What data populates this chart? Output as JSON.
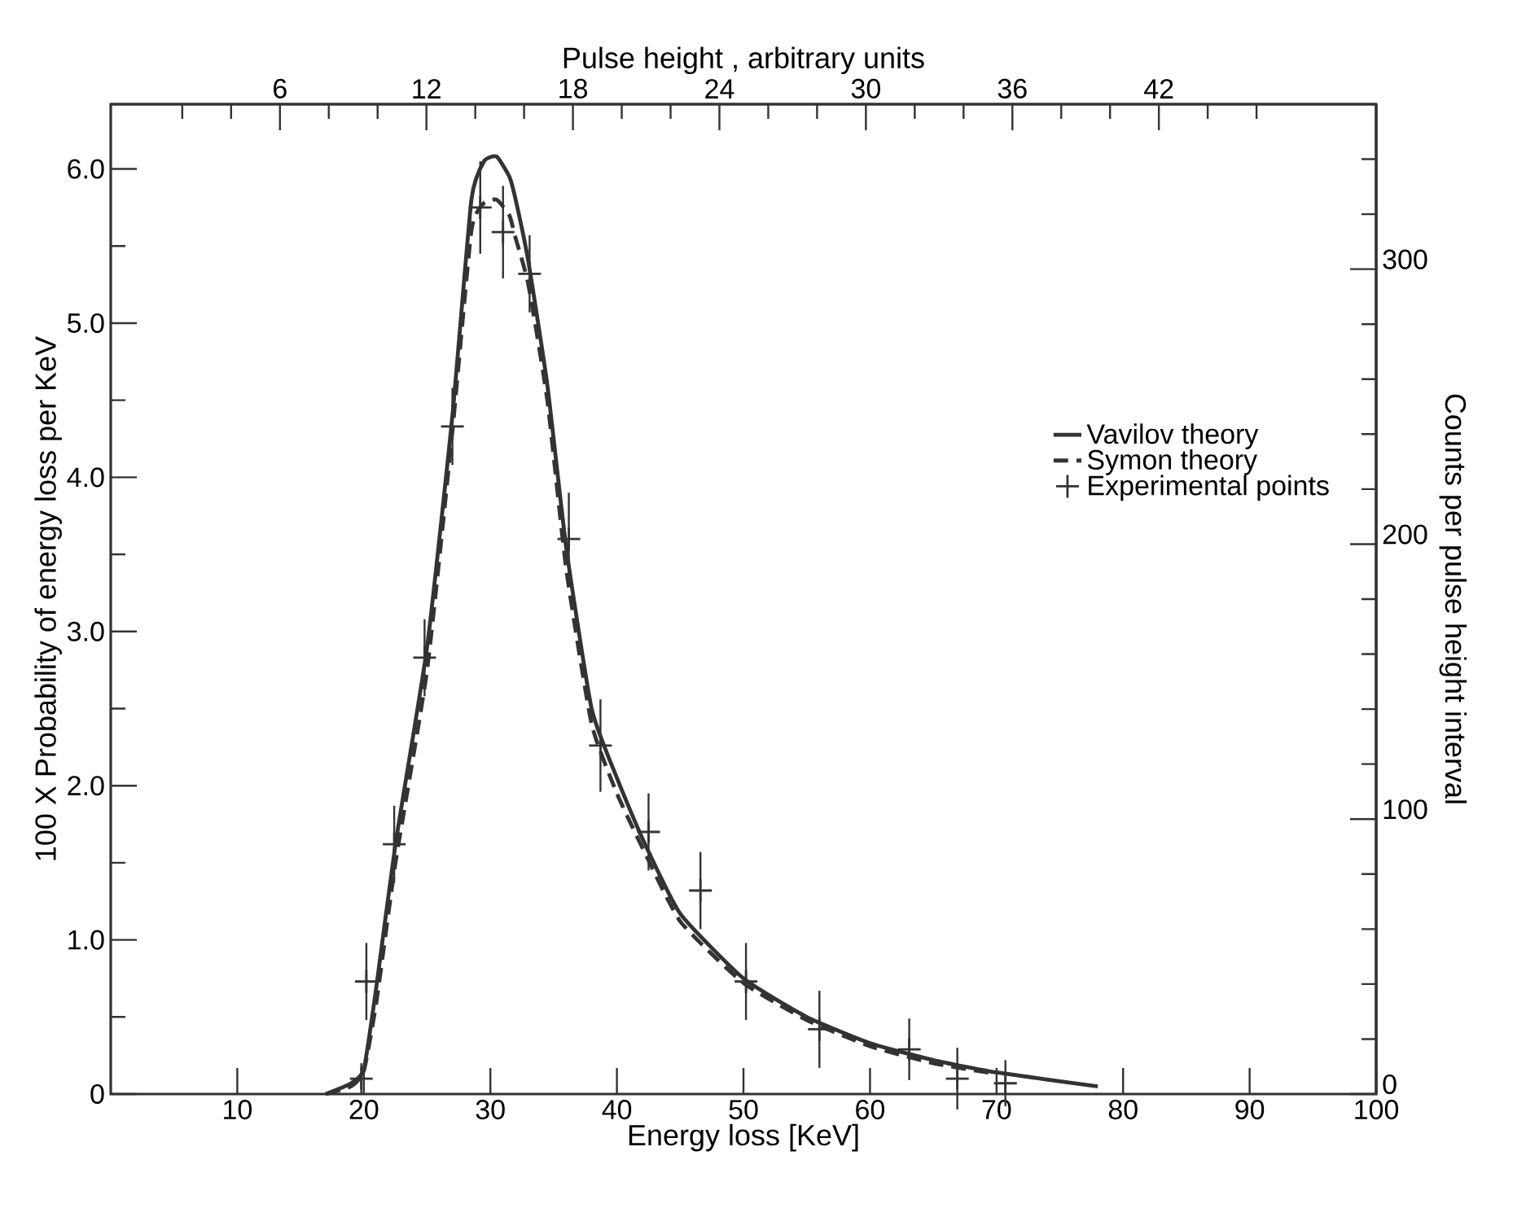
{
  "chart_data": {
    "type": "line",
    "xlabel": "Energy loss [KeV]",
    "ylabel": "100 X Probability of energy loss per KeV",
    "y2label": "Counts per pulse height interval",
    "x2label": "Pulse height , arbitrary units",
    "xlim": [
      0,
      100
    ],
    "ylim": [
      0,
      6.42
    ],
    "y2lim": [
      0,
      360
    ],
    "x2lim": [
      -0.93,
      50.9
    ],
    "xticks": [
      10,
      20,
      30,
      40,
      50,
      60,
      70,
      80,
      90,
      100
    ],
    "yticks": [
      0,
      {
        "value": 0.5,
        "label": null
      },
      {
        "value": 1,
        "label": "1.0"
      },
      {
        "value": 1.5,
        "label": null
      },
      {
        "value": 2,
        "label": "2.0"
      },
      {
        "value": 2.5,
        "label": null
      },
      {
        "value": 3,
        "label": "3.0"
      },
      {
        "value": 3.5,
        "label": null
      },
      {
        "value": 4,
        "label": "4.0"
      },
      {
        "value": 4.5,
        "label": null
      },
      {
        "value": 5,
        "label": "5.0"
      },
      {
        "value": 5.5,
        "label": null
      },
      {
        "value": 6,
        "label": "6.0"
      }
    ],
    "y2ticks": [
      0,
      {
        "value": 20,
        "label": null
      },
      {
        "value": 40,
        "label": null
      },
      {
        "value": 60,
        "label": null
      },
      {
        "value": 80,
        "label": null
      },
      100,
      {
        "value": 120,
        "label": null
      },
      {
        "value": 140,
        "label": null
      },
      {
        "value": 160,
        "label": null
      },
      {
        "value": 180,
        "label": null
      },
      200,
      {
        "value": 220,
        "label": null
      },
      {
        "value": 240,
        "label": null
      },
      {
        "value": 260,
        "label": null
      },
      {
        "value": 280,
        "label": null
      },
      300,
      {
        "value": 320,
        "label": null
      },
      {
        "value": 340,
        "label": null
      }
    ],
    "x2ticks": [
      {
        "value": 2,
        "label": null
      },
      {
        "value": 4,
        "label": null
      },
      6,
      {
        "value": 8,
        "label": null
      },
      {
        "value": 10,
        "label": null
      },
      12,
      {
        "value": 14,
        "label": null
      },
      {
        "value": 16,
        "label": null
      },
      18,
      {
        "value": 20,
        "label": null
      },
      {
        "value": 22,
        "label": null
      },
      24,
      {
        "value": 26,
        "label": null
      },
      {
        "value": 28,
        "label": null
      },
      30,
      {
        "value": 32,
        "label": null
      },
      {
        "value": 34,
        "label": null
      },
      36,
      {
        "value": 38,
        "label": null
      },
      {
        "value": 40,
        "label": null
      },
      42,
      {
        "value": 44,
        "label": null
      },
      {
        "value": 46,
        "label": null
      }
    ],
    "grid": false,
    "legend": "right",
    "series": [
      {
        "name": "Vavilov theory",
        "color": "#333333",
        "line_style": "solid",
        "marker": "none",
        "x": [
          17,
          19,
          20,
          21,
          22.5,
          25,
          27,
          28.5,
          29.5,
          30.5,
          31.5,
          32,
          33,
          34.5,
          36,
          38,
          40,
          42,
          45,
          50,
          55,
          60,
          65,
          70,
          78
        ],
        "values": [
          0,
          0.07,
          0.16,
          0.7,
          1.62,
          2.9,
          4.4,
          5.8,
          6.05,
          6.08,
          5.95,
          5.8,
          5.4,
          4.6,
          3.54,
          2.5,
          2.05,
          1.66,
          1.17,
          0.75,
          0.5,
          0.33,
          0.22,
          0.14,
          0.05
        ]
      },
      {
        "name": "Symon theory",
        "color": "#333333",
        "line_style": "dashed",
        "marker": "none",
        "x": [
          17,
          19,
          20,
          21,
          22.5,
          25,
          27,
          28.5,
          29.5,
          30.5,
          31.5,
          32,
          33,
          34.5,
          36,
          38,
          40,
          42,
          45,
          50,
          55,
          60,
          65,
          70
        ],
        "values": [
          0,
          0.05,
          0.15,
          0.6,
          1.5,
          2.75,
          4.3,
          5.6,
          5.78,
          5.8,
          5.7,
          5.55,
          5.25,
          4.5,
          3.4,
          2.4,
          1.95,
          1.6,
          1.12,
          0.72,
          0.48,
          0.31,
          0.2,
          0.13
        ]
      },
      {
        "name": "Experimental points",
        "type": "scatter",
        "color": "#333333",
        "marker": "cross",
        "x": [
          19.8,
          20.2,
          22.4,
          24.8,
          27.0,
          29.2,
          31.0,
          33.1,
          36.2,
          38.7,
          42.5,
          46.6,
          50.2,
          56.0,
          63.1,
          66.9,
          70.7
        ],
        "values": [
          0.1,
          0.73,
          1.62,
          2.83,
          4.33,
          5.75,
          5.59,
          5.32,
          3.6,
          2.26,
          1.7,
          1.32,
          0.73,
          0.42,
          0.29,
          0.1,
          0.07
        ],
        "errors": [
          0.1,
          0.25,
          0.25,
          0.25,
          0.25,
          0.3,
          0.3,
          0.25,
          0.3,
          0.3,
          0.25,
          0.25,
          0.25,
          0.25,
          0.2,
          0.2,
          0.15
        ]
      }
    ]
  }
}
